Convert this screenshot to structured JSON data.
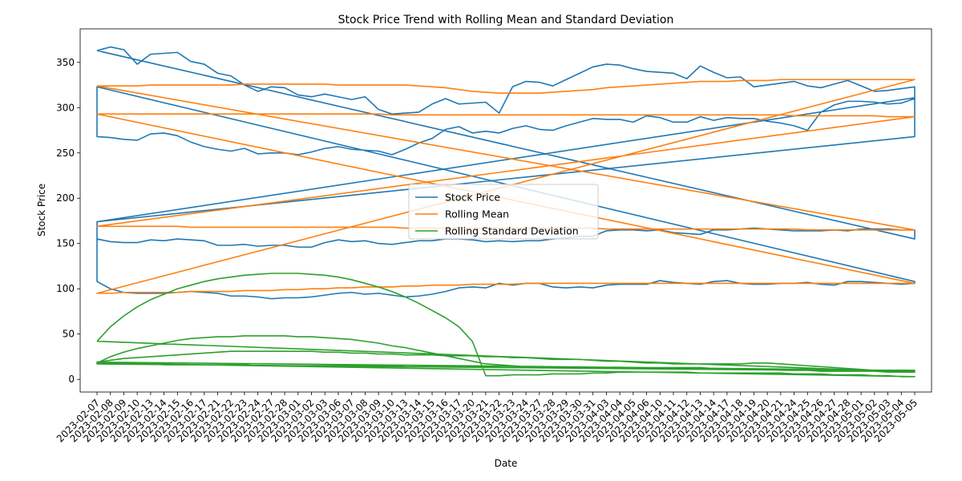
{
  "chart_data": {
    "type": "line",
    "title": "Stock Price Trend with Rolling Mean and Standard Deviation",
    "xlabel": "Date",
    "ylabel": "Stock Price",
    "ylim": [
      -14,
      387
    ],
    "yticks": [
      0,
      50,
      100,
      150,
      200,
      250,
      300,
      350
    ],
    "grid": false,
    "legend_position": "center",
    "x": [
      "2023-02-07",
      "2023-02-08",
      "2023-02-09",
      "2023-02-10",
      "2023-02-13",
      "2023-02-14",
      "2023-02-15",
      "2023-02-16",
      "2023-02-17",
      "2023-02-21",
      "2023-02-22",
      "2023-02-23",
      "2023-02-24",
      "2023-02-27",
      "2023-02-28",
      "2023-03-01",
      "2023-03-02",
      "2023-03-03",
      "2023-03-06",
      "2023-03-07",
      "2023-03-08",
      "2023-03-09",
      "2023-03-10",
      "2023-03-13",
      "2023-03-14",
      "2023-03-15",
      "2023-03-16",
      "2023-03-17",
      "2023-03-20",
      "2023-03-21",
      "2023-03-22",
      "2023-03-23",
      "2023-03-24",
      "2023-03-27",
      "2023-03-28",
      "2023-03-29",
      "2023-03-30",
      "2023-03-31",
      "2023-04-03",
      "2023-04-04",
      "2023-04-05",
      "2023-04-06",
      "2023-04-10",
      "2023-04-11",
      "2023-04-12",
      "2023-04-13",
      "2023-04-14",
      "2023-04-17",
      "2023-04-18",
      "2023-04-19",
      "2023-04-20",
      "2023-04-21",
      "2023-04-24",
      "2023-04-25",
      "2023-04-26",
      "2023-04-27",
      "2023-04-28",
      "2023-05-01",
      "2023-05-02",
      "2023-05-03",
      "2023-05-04",
      "2023-05-05"
    ],
    "series": [
      {
        "name": "Stock Price",
        "color": "#1f77b4",
        "segments": [
          [
            363,
            367,
            364,
            348,
            359,
            360,
            361,
            351,
            348,
            338,
            335,
            325,
            318,
            323,
            322,
            314,
            312,
            315,
            312,
            309,
            312,
            298,
            293,
            294,
            295,
            304,
            310,
            304,
            305,
            306,
            294,
            323,
            329,
            328,
            324,
            331,
            338,
            345,
            348,
            347,
            343,
            340,
            339,
            338,
            332,
            346,
            339,
            333,
            334,
            323,
            325,
            327,
            329,
            324,
            322,
            326,
            330,
            324,
            318,
            319,
            321,
            323
          ],
          [
            311,
            174
          ],
          [
            108,
            100,
            96,
            95,
            95,
            95,
            96,
            97,
            96,
            95,
            92,
            92,
            91,
            89,
            90,
            90,
            91,
            93,
            95,
            96,
            94,
            95,
            93,
            91,
            92,
            94,
            97,
            101,
            102,
            101,
            106,
            104,
            106,
            106,
            102,
            101,
            102,
            101,
            104,
            105,
            105,
            105,
            109,
            107,
            106,
            105,
            108,
            109,
            106,
            105,
            105,
            106,
            106,
            107,
            105,
            104,
            108,
            108,
            107,
            106,
            105,
            106
          ],
          [
            108,
            323
          ],
          [
            268,
            267,
            265,
            264,
            271,
            272,
            269,
            262,
            257,
            254,
            252,
            255,
            249,
            250,
            250,
            248,
            251,
            255,
            257,
            254,
            253,
            252,
            248,
            254,
            261,
            266,
            276,
            279,
            272,
            274,
            272,
            277,
            280,
            276,
            275,
            280,
            284,
            288,
            287,
            287,
            284,
            291,
            289,
            284,
            284,
            290,
            286,
            289,
            288,
            288,
            285,
            283,
            280,
            275,
            295,
            303,
            307,
            307,
            306,
            304,
            305,
            310
          ],
          [
            268,
            174
          ],
          [
            155,
            152,
            151,
            151,
            154,
            153,
            155,
            154,
            153,
            148,
            148,
            149,
            147,
            148,
            148,
            146,
            146,
            151,
            154,
            152,
            153,
            150,
            149,
            151,
            153,
            153,
            155,
            155,
            154,
            152,
            153,
            152,
            153,
            153,
            155,
            156,
            158,
            158,
            164,
            165,
            165,
            164,
            165,
            162,
            161,
            160,
            165,
            165,
            166,
            167,
            166,
            165,
            164,
            164,
            164,
            165,
            164,
            166,
            166,
            166,
            165,
            165
          ],
          [
            155,
            363
          ]
        ]
      },
      {
        "name": "Rolling Mean",
        "color": "#ff7f0e",
        "segments": [
          [
            324,
            324,
            324,
            324,
            325,
            325,
            325,
            325,
            325,
            325,
            325,
            326,
            326,
            326,
            326,
            326,
            326,
            326,
            325,
            325,
            325,
            325,
            325,
            325,
            324,
            323,
            322,
            320,
            318,
            317,
            316,
            316,
            316,
            316,
            317,
            318,
            319,
            320,
            322,
            323,
            324,
            325,
            326,
            327,
            328,
            329,
            329,
            329,
            330,
            330,
            330,
            331,
            331,
            331,
            331,
            331,
            331,
            331,
            331,
            331,
            331,
            331
          ],
          [
            331,
            95
          ],
          [
            95,
            95,
            96,
            96,
            96,
            96,
            96,
            97,
            97,
            97,
            97,
            98,
            98,
            98,
            99,
            99,
            100,
            100,
            101,
            101,
            102,
            102,
            102,
            103,
            103,
            104,
            104,
            104,
            105,
            105,
            105,
            105,
            106,
            106,
            106,
            106,
            106,
            106,
            106,
            106,
            106,
            106,
            106,
            106,
            106,
            106,
            106,
            106,
            106,
            106,
            106,
            106,
            106,
            106,
            106,
            106,
            106,
            106,
            106,
            106,
            106,
            106
          ],
          [
            106,
            293
          ],
          [
            293,
            293,
            293,
            293,
            293,
            293,
            293,
            293,
            293,
            293,
            293,
            293,
            293,
            293,
            293,
            293,
            293,
            293,
            293,
            293,
            293,
            293,
            292,
            292,
            292,
            292,
            292,
            292,
            292,
            292,
            292,
            292,
            292,
            292,
            292,
            292,
            292,
            292,
            292,
            292,
            292,
            292,
            292,
            292,
            292,
            292,
            292,
            292,
            292,
            292,
            292,
            292,
            291,
            291,
            291,
            291,
            291,
            291,
            291,
            290,
            290,
            290
          ],
          [
            290,
            169
          ],
          [
            169,
            169,
            169,
            169,
            169,
            169,
            169,
            168,
            168,
            168,
            168,
            168,
            168,
            168,
            168,
            168,
            168,
            168,
            168,
            168,
            168,
            168,
            168,
            167,
            167,
            167,
            167,
            167,
            167,
            167,
            167,
            167,
            167,
            167,
            167,
            167,
            167,
            167,
            166,
            166,
            166,
            166,
            166,
            166,
            166,
            166,
            166,
            166,
            166,
            166,
            166,
            166,
            166,
            165,
            165,
            165,
            165,
            165,
            165,
            165,
            165,
            165
          ],
          [
            165,
            324
          ]
        ]
      },
      {
        "name": "Rolling Standard Deviation",
        "color": "#2ca02c",
        "segments": [
          [
            42,
            58,
            70,
            80,
            88,
            94,
            100,
            104,
            108,
            111,
            113,
            115,
            116,
            117,
            117,
            117,
            116,
            115,
            113,
            110,
            106,
            102,
            97,
            91,
            84,
            76,
            68,
            58,
            42,
            4,
            4,
            5,
            5,
            5,
            6,
            6,
            6,
            7,
            7,
            8,
            8,
            8,
            8,
            8,
            8,
            7,
            7,
            7,
            7,
            7,
            7,
            7,
            6,
            6,
            6,
            5,
            5,
            5,
            4,
            4,
            3,
            3
          ],
          [
            3,
            18
          ],
          [
            18,
            25,
            30,
            34,
            37,
            40,
            43,
            45,
            46,
            47,
            47,
            48,
            48,
            48,
            48,
            47,
            47,
            46,
            45,
            44,
            42,
            40,
            37,
            35,
            32,
            29,
            26,
            23,
            20,
            17,
            16,
            15,
            14,
            14,
            13,
            13,
            13,
            13,
            13,
            13,
            13,
            13,
            13,
            13,
            13,
            13,
            12,
            12,
            12,
            11,
            11,
            11,
            10,
            10,
            10,
            10,
            10,
            10,
            10,
            10,
            10,
            10
          ],
          [
            10,
            19
          ],
          [
            19,
            21,
            23,
            24,
            25,
            26,
            27,
            28,
            29,
            30,
            31,
            31,
            31,
            31,
            31,
            31,
            31,
            30,
            30,
            29,
            29,
            28,
            28,
            27,
            27,
            27,
            26,
            26,
            26,
            25,
            25,
            24,
            24,
            23,
            22,
            22,
            22,
            21,
            20,
            20,
            19,
            18,
            18,
            17,
            17,
            17,
            17,
            17,
            17,
            18,
            18,
            17,
            16,
            15,
            14,
            13,
            12,
            11,
            10,
            9,
            9,
            9
          ],
          [
            9,
            17
          ],
          [
            17,
            17,
            17,
            17,
            17,
            16,
            16,
            16,
            16,
            16,
            16,
            16,
            15,
            15,
            15,
            15,
            15,
            15,
            15,
            15,
            15,
            15,
            15,
            14,
            14,
            14,
            14,
            14,
            14,
            14,
            13,
            13,
            13,
            13,
            13,
            13,
            13,
            13,
            13,
            12,
            12,
            12,
            12,
            12,
            12,
            12,
            11,
            11,
            11,
            11,
            11,
            10,
            10,
            10,
            9,
            9,
            9,
            9,
            9,
            8,
            8,
            8
          ],
          [
            8,
            42
          ]
        ]
      }
    ]
  }
}
